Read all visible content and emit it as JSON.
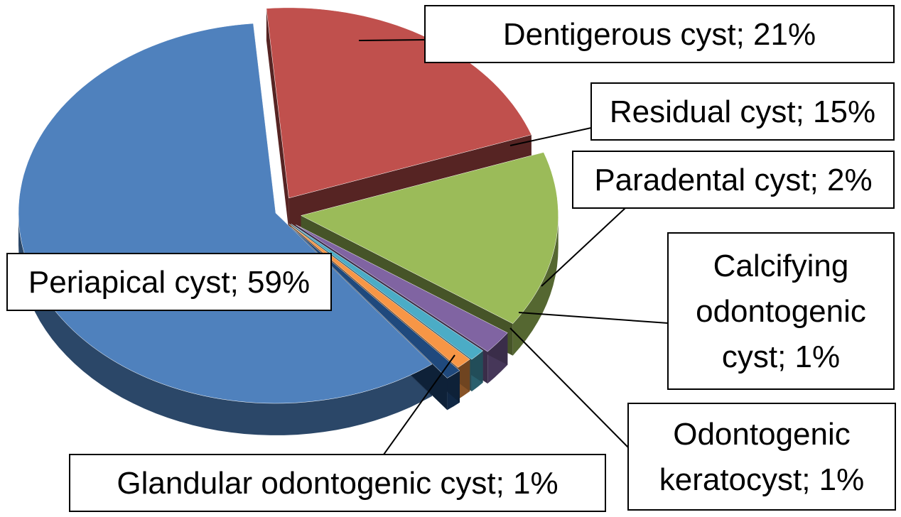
{
  "chart_data": {
    "type": "pie",
    "title": "",
    "style": "3d-exploded",
    "slices": [
      {
        "name": "Periapical cyst",
        "value": 59,
        "color": "#4f81bd",
        "label_lines": [
          "Periapical cyst; 59%"
        ]
      },
      {
        "name": "Dentigerous cyst",
        "value": 21,
        "color": "#c0504d",
        "label_lines": [
          "Dentigerous cyst; 21%"
        ]
      },
      {
        "name": "Residual cyst",
        "value": 15,
        "color": "#9bbb59",
        "label_lines": [
          "Residual cyst; 15%"
        ]
      },
      {
        "name": "Paradental cyst",
        "value": 2,
        "color": "#8064a2",
        "label_lines": [
          "Paradental cyst; 2%"
        ]
      },
      {
        "name": "Calcifying odontogenic cyst",
        "value": 1,
        "color": "#4bacc6",
        "label_lines": [
          "Calcifying",
          "odontogenic",
          "cyst; 1%"
        ]
      },
      {
        "name": "Odontogenic keratocyst",
        "value": 1,
        "color": "#f79646",
        "label_lines": [
          "Odontogenic",
          "keratocyst; 1%"
        ]
      },
      {
        "name": "Glandular odontogenic cyst",
        "value": 1,
        "color": "#1f497d",
        "label_lines": [
          "Glandular odontogenic cyst; 1%"
        ]
      }
    ]
  }
}
